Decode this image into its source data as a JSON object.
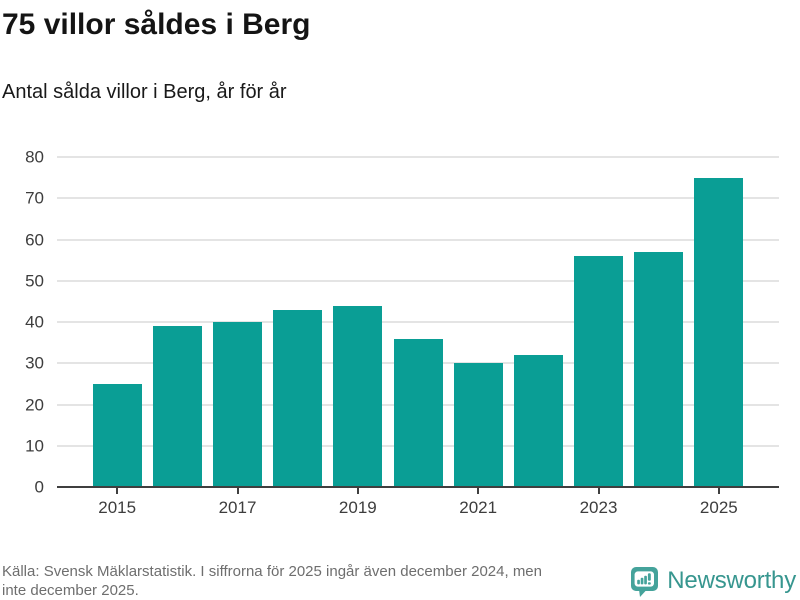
{
  "header": {
    "title": "75 villor såldes i Berg",
    "subtitle": "Antal sålda villor i Berg, år för år"
  },
  "chart_data": {
    "type": "bar",
    "categories": [
      "2015",
      "2016",
      "2017",
      "2018",
      "2019",
      "2020",
      "2021",
      "2022",
      "2023",
      "2024",
      "2025"
    ],
    "values": [
      25,
      39,
      40,
      43,
      44,
      36,
      30,
      32,
      56,
      57,
      75
    ],
    "title": "75 villor såldes i Berg",
    "subtitle": "Antal sålda villor i Berg, år för år",
    "xlabel": "",
    "ylabel": "",
    "ylim": [
      0,
      80
    ],
    "yticks": [
      0,
      10,
      20,
      30,
      40,
      50,
      60,
      70,
      80
    ],
    "xtick_labels": [
      "2015",
      "2017",
      "2019",
      "2021",
      "2023",
      "2025"
    ],
    "grid": true,
    "legend": "none"
  },
  "colors": {
    "bar": "#0a9e95",
    "gridline": "#e4e4e4",
    "axis_line": "#3f3f3f",
    "axis_text": "#3d3d3d",
    "title_text": "#141414",
    "footer_text": "#6e6e6e",
    "logo_teal": "#45a39b",
    "logo_text_teal": "#37968f"
  },
  "footer": {
    "source_lines": [
      "Källa: Svensk Mäklarstatistik. I siffrorna för 2025 ingår även december 2024, men",
      "inte december 2025."
    ],
    "logo_text": "Newsworthy"
  }
}
